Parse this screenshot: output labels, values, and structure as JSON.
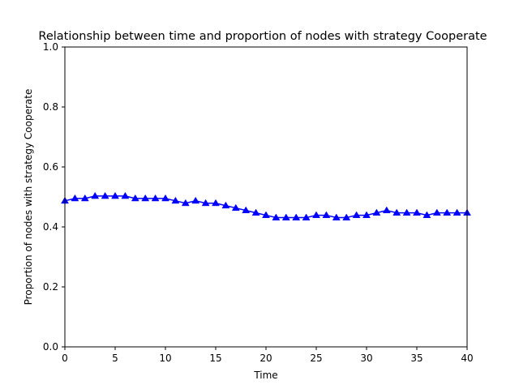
{
  "chart_data": {
    "type": "line",
    "title": "Relationship between time and proportion of nodes with strategy Cooperate",
    "xlabel": "Time",
    "ylabel": "Proportion of nodes with strategy Cooperate",
    "xlim": [
      0,
      40
    ],
    "ylim": [
      0.0,
      1.0
    ],
    "xticks": [
      0,
      5,
      10,
      15,
      20,
      25,
      30,
      35,
      40
    ],
    "yticks": [
      0.0,
      0.2,
      0.4,
      0.6,
      0.8,
      1.0
    ],
    "xtick_labels": [
      "0",
      "5",
      "10",
      "15",
      "20",
      "25",
      "30",
      "35",
      "40"
    ],
    "ytick_labels": [
      "0.0",
      "0.2",
      "0.4",
      "0.6",
      "0.8",
      "1.0"
    ],
    "grid": false,
    "series": [
      {
        "color": "#0000ff",
        "marker": "triangle-up",
        "x": [
          0,
          1,
          2,
          3,
          4,
          5,
          6,
          7,
          8,
          9,
          10,
          11,
          12,
          13,
          14,
          15,
          16,
          17,
          18,
          19,
          20,
          21,
          22,
          23,
          24,
          25,
          26,
          27,
          28,
          29,
          30,
          31,
          32,
          33,
          34,
          35,
          36,
          37,
          38,
          39,
          40
        ],
        "y": [
          0.487,
          0.495,
          0.495,
          0.503,
          0.503,
          0.503,
          0.503,
          0.495,
          0.495,
          0.495,
          0.495,
          0.487,
          0.479,
          0.487,
          0.479,
          0.479,
          0.471,
          0.463,
          0.455,
          0.447,
          0.439,
          0.431,
          0.431,
          0.431,
          0.431,
          0.439,
          0.439,
          0.431,
          0.431,
          0.439,
          0.439,
          0.447,
          0.455,
          0.447,
          0.447,
          0.447,
          0.439,
          0.447,
          0.447,
          0.447,
          0.447
        ]
      }
    ]
  }
}
